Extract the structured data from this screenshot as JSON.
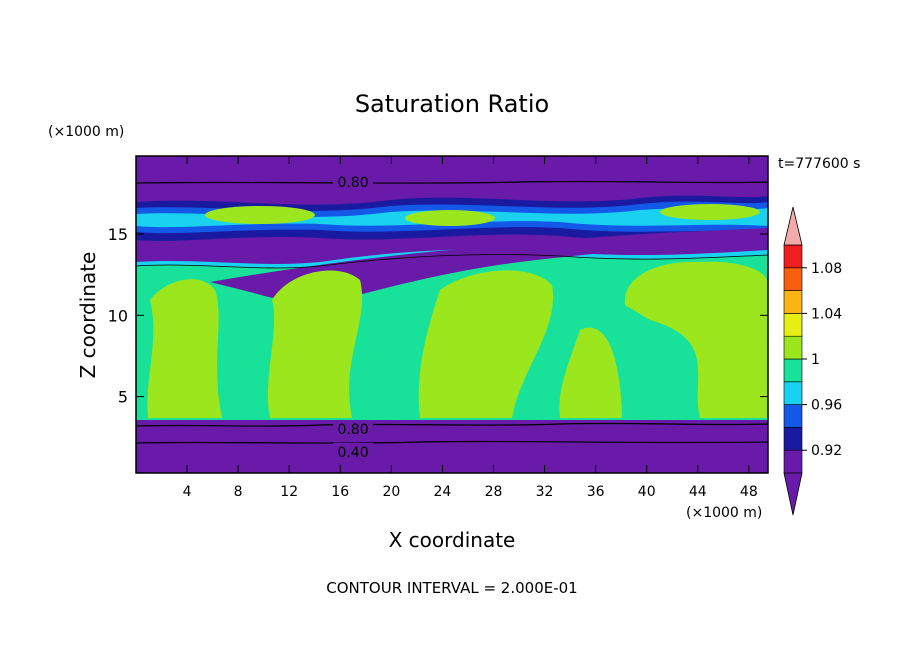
{
  "chart_data": {
    "type": "contour",
    "title": "Saturation Ratio",
    "xlabel": "X coordinate",
    "ylabel": "Z coordinate",
    "x_unit": "(×1000 m)",
    "y_unit": "(×1000 m)",
    "time_label": "t=777600 s",
    "footer": "CONTOUR INTERVAL = 2.000E-01",
    "xlim": [
      0,
      49.5
    ],
    "ylim": [
      0.3,
      19.8
    ],
    "x_ticks": [
      "4",
      "8",
      "12",
      "16",
      "20",
      "24",
      "28",
      "32",
      "36",
      "40",
      "44",
      "48"
    ],
    "y_ticks": [
      "5",
      "10",
      "15"
    ],
    "contour_labels": [
      {
        "text": "0.80",
        "x": 17.0,
        "z": 18.2
      },
      {
        "text": "0.80",
        "x": 17.0,
        "z": 3.0
      },
      {
        "text": "0.40",
        "x": 17.0,
        "z": 1.6
      }
    ],
    "colorbar": {
      "levels": [
        0.9,
        0.92,
        0.94,
        0.96,
        0.98,
        1.0,
        1.02,
        1.04,
        1.06,
        1.08,
        1.1
      ],
      "tick_labels": [
        "0.92",
        "0.96",
        "1",
        "1.04",
        "1.08"
      ],
      "colors": [
        "#6a1aa8",
        "#1a1aa0",
        "#1458e8",
        "#19d2f0",
        "#18e29a",
        "#9ce61e",
        "#e6ee14",
        "#fab414",
        "#f86010",
        "#f01e1e"
      ],
      "under_color": "#6a1aa8",
      "over_color": "#f4aaaa"
    },
    "layers": [
      {
        "field": "saturation ratio",
        "z_range": [
          0.3,
          2.4
        ],
        "range": [
          0.0,
          0.4
        ]
      },
      {
        "field": "saturation ratio",
        "z_range": [
          2.4,
          3.4
        ],
        "range": [
          0.4,
          0.8
        ]
      },
      {
        "field": "saturation ratio",
        "z_range": [
          3.4,
          12.5
        ],
        "range": [
          0.98,
          1.02
        ]
      },
      {
        "field": "saturation ratio",
        "z_range": [
          12.5,
          17.2
        ],
        "range": [
          0.8,
          1.0
        ]
      },
      {
        "field": "saturation ratio",
        "z_range": [
          17.2,
          19.8
        ],
        "range": [
          0.6,
          0.8
        ]
      }
    ]
  }
}
